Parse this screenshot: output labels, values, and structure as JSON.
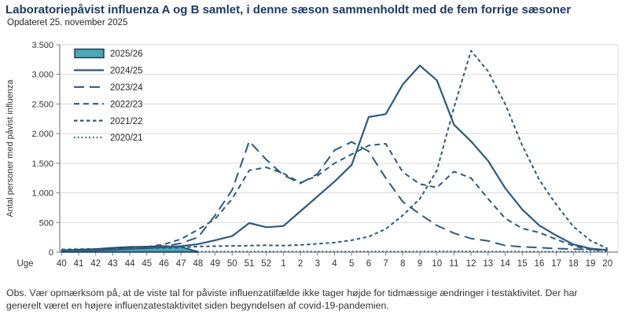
{
  "header": {
    "title": "Laboratoriepåvist influenza A og B samlet, i denne sæson sammenholdt med de fem forrige sæsoner",
    "subtitle": "Opdateret 25. november 2025"
  },
  "footnote": {
    "text": "Obs. Vær opmærksom på, at de viste tal for påviste influenzatilfælde ikke tager højde for tidmæssige ændringer i testaktivitet. Der har generelt været en højere influenzatestaktivitet siden begyndelsen af covid-19-pandemien."
  },
  "chart_data": {
    "type": "line",
    "x_axis_label": "Uge",
    "y_axis_label": "Antal personer med påvist influenza",
    "categories": [
      "40",
      "41",
      "42",
      "43",
      "44",
      "45",
      "46",
      "47",
      "48",
      "49",
      "50",
      "51",
      "52",
      "1",
      "2",
      "3",
      "4",
      "5",
      "6",
      "7",
      "8",
      "9",
      "10",
      "11",
      "12",
      "13",
      "14",
      "15",
      "16",
      "17",
      "18",
      "19",
      "20"
    ],
    "y_ticks": [
      "0",
      "500",
      "1.000",
      "1.500",
      "2.000",
      "2.500",
      "3.000",
      "3.500"
    ],
    "ylim": [
      0,
      3500
    ],
    "grid": true,
    "legend_position": "top-left",
    "line_color": "#2e5a7d",
    "gridline_color": "#d9d9d9",
    "axis_color": "#7f7f7f",
    "text_color": "#333333",
    "series": [
      {
        "name": "2025/26",
        "style": "area",
        "fill": "#4da7b5",
        "stroke": "#17364f",
        "values": [
          35,
          45,
          55,
          75,
          90,
          95,
          105,
          90,
          8,
          null,
          null,
          null,
          null,
          null,
          null,
          null,
          null,
          null,
          null,
          null,
          null,
          null,
          null,
          null,
          null,
          null,
          null,
          null,
          null,
          null,
          null,
          null,
          null
        ]
      },
      {
        "name": "2024/25",
        "style": "solid",
        "values": [
          20,
          25,
          30,
          40,
          55,
          70,
          85,
          100,
          135,
          200,
          270,
          490,
          420,
          440,
          690,
          940,
          1190,
          1470,
          2280,
          2330,
          2830,
          3150,
          2900,
          2150,
          1870,
          1540,
          1080,
          720,
          450,
          280,
          130,
          60,
          35
        ]
      },
      {
        "name": "2023/24",
        "style": "long-dash",
        "values": [
          30,
          35,
          40,
          45,
          55,
          65,
          95,
          150,
          250,
          620,
          1050,
          1870,
          1560,
          1300,
          1160,
          1320,
          1720,
          1860,
          1700,
          1250,
          850,
          640,
          450,
          320,
          230,
          190,
          110,
          90,
          75,
          60,
          50,
          45,
          40
        ]
      },
      {
        "name": "2022/23",
        "style": "medium-dash",
        "values": [
          30,
          35,
          45,
          55,
          65,
          90,
          130,
          220,
          380,
          560,
          900,
          1380,
          1430,
          1330,
          1170,
          1290,
          1500,
          1650,
          1800,
          1830,
          1350,
          1150,
          1090,
          1360,
          1250,
          900,
          570,
          400,
          330,
          215,
          105,
          40,
          25
        ]
      },
      {
        "name": "2021/22",
        "style": "short-dash",
        "values": [
          45,
          50,
          55,
          60,
          60,
          65,
          70,
          75,
          95,
          100,
          105,
          110,
          115,
          110,
          120,
          140,
          160,
          200,
          260,
          390,
          620,
          900,
          1380,
          2440,
          3400,
          3050,
          2500,
          1800,
          1220,
          800,
          430,
          195,
          60
        ]
      },
      {
        "name": "2020/21",
        "style": "dot",
        "values": [
          8,
          8,
          8,
          8,
          8,
          8,
          8,
          8,
          10,
          10,
          10,
          10,
          10,
          10,
          10,
          10,
          10,
          10,
          12,
          12,
          12,
          12,
          15,
          15,
          15,
          12,
          10,
          10,
          10,
          10,
          8,
          8,
          8
        ]
      }
    ]
  }
}
